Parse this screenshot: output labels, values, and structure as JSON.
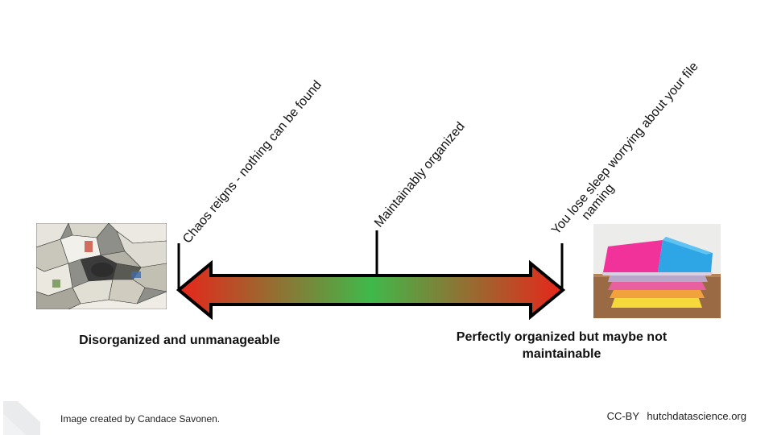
{
  "scale": {
    "positions": [
      {
        "label": "Chaos reigns - nothing can be found"
      },
      {
        "label": "Maintainably organized"
      },
      {
        "label_lines": [
          "You lose sleep worrying about your file",
          "naming"
        ]
      }
    ],
    "gradient": [
      "#e8251a",
      "#3fb94a",
      "#e8251a"
    ],
    "left_caption": "Disorganized and unmanageable",
    "right_caption_lines": [
      "Perfectly organized but maybe not",
      "maintainable"
    ]
  },
  "footer": {
    "credit": "Image created by Candace Savonen.",
    "license": "CC-BY",
    "site": "hutchdatascience.org"
  },
  "images": {
    "left": "pile-of-papers-photo",
    "right": "stacked-folders-photo"
  }
}
